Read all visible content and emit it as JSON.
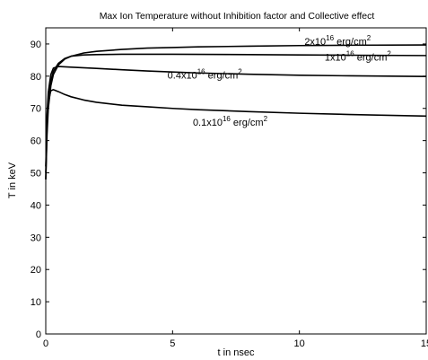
{
  "chart_data": {
    "type": "line",
    "title": "Max Ion Temperature without Inhibition factor and Collective effect",
    "xlabel": "t in nsec",
    "ylabel": "T in keV",
    "xlim": [
      0,
      15
    ],
    "ylim": [
      0,
      95
    ],
    "xticks": [
      0,
      5,
      10,
      15
    ],
    "yticks": [
      0,
      10,
      20,
      30,
      40,
      50,
      60,
      70,
      80,
      90
    ],
    "grid": false,
    "legend": "none",
    "line_color": "#000000",
    "series": [
      {
        "label_parts": [
          "2x10",
          "16",
          " erg/cm",
          "2"
        ],
        "label_anchor": [
          10.2,
          89.7
        ],
        "points": [
          [
            0,
            48
          ],
          [
            0.05,
            62
          ],
          [
            0.1,
            70
          ],
          [
            0.2,
            77
          ],
          [
            0.3,
            80.5
          ],
          [
            0.5,
            83.5
          ],
          [
            0.75,
            85.3
          ],
          [
            1,
            86.2
          ],
          [
            1.5,
            87.2
          ],
          [
            2,
            87.7
          ],
          [
            3,
            88.3
          ],
          [
            4,
            88.7
          ],
          [
            5,
            88.9
          ],
          [
            6,
            89.1
          ],
          [
            8,
            89.3
          ],
          [
            10,
            89.5
          ],
          [
            12,
            89.6
          ],
          [
            15,
            89.7
          ]
        ]
      },
      {
        "label_parts": [
          "1x10",
          "16",
          " erg/cm",
          "2"
        ],
        "label_anchor": [
          11.0,
          84.8
        ],
        "points": [
          [
            0,
            48
          ],
          [
            0.05,
            64
          ],
          [
            0.1,
            72
          ],
          [
            0.2,
            78.5
          ],
          [
            0.3,
            81.5
          ],
          [
            0.5,
            84
          ],
          [
            0.75,
            85.5
          ],
          [
            1,
            86.2
          ],
          [
            1.5,
            86.6
          ],
          [
            2,
            86.7
          ],
          [
            3,
            86.8
          ],
          [
            5,
            86.8
          ],
          [
            8,
            86.7
          ],
          [
            10,
            86.6
          ],
          [
            12,
            86.5
          ],
          [
            15,
            86.4
          ]
        ]
      },
      {
        "label_parts": [
          "0.4x10",
          "16",
          " erg/cm",
          "2"
        ],
        "label_anchor": [
          4.8,
          79.2
        ],
        "points": [
          [
            0,
            50
          ],
          [
            0.05,
            68
          ],
          [
            0.1,
            75
          ],
          [
            0.2,
            80.5
          ],
          [
            0.3,
            82.5
          ],
          [
            0.5,
            83
          ],
          [
            0.75,
            82.9
          ],
          [
            1,
            82.8
          ],
          [
            2,
            82.4
          ],
          [
            3,
            82
          ],
          [
            4,
            81.6
          ],
          [
            5,
            81.3
          ],
          [
            6,
            81
          ],
          [
            8,
            80.6
          ],
          [
            10,
            80.3
          ],
          [
            12,
            80.1
          ],
          [
            15,
            79.9
          ]
        ]
      },
      {
        "label_parts": [
          "0.1x10",
          "16",
          " erg/cm",
          "2"
        ],
        "label_anchor": [
          5.8,
          64.6
        ],
        "points": [
          [
            0,
            52
          ],
          [
            0.05,
            66
          ],
          [
            0.1,
            72
          ],
          [
            0.2,
            75.5
          ],
          [
            0.3,
            75.8
          ],
          [
            0.5,
            75.2
          ],
          [
            0.75,
            74.3
          ],
          [
            1,
            73.6
          ],
          [
            1.5,
            72.6
          ],
          [
            2,
            71.9
          ],
          [
            3,
            71
          ],
          [
            4,
            70.5
          ],
          [
            5,
            70
          ],
          [
            6,
            69.6
          ],
          [
            8,
            69
          ],
          [
            10,
            68.5
          ],
          [
            12,
            68.1
          ],
          [
            15,
            67.6
          ]
        ]
      }
    ]
  }
}
